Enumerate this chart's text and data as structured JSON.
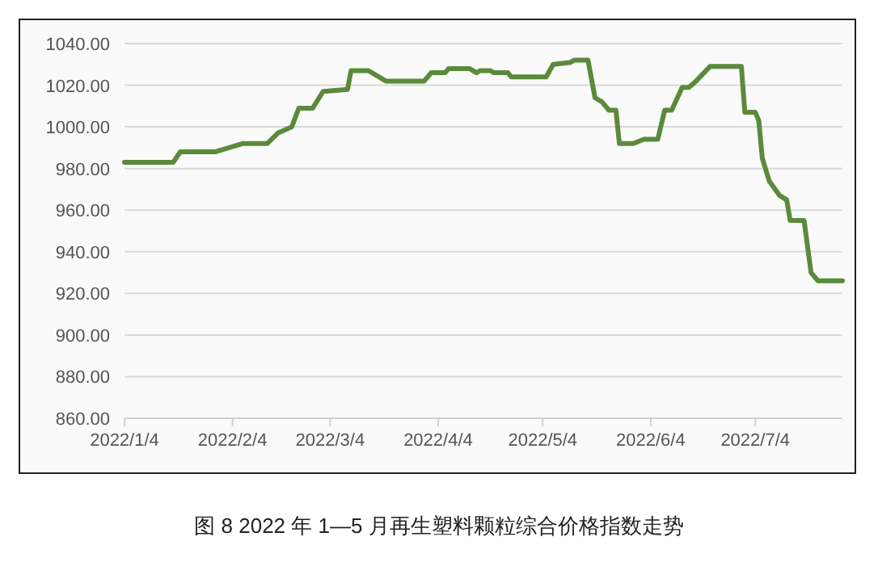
{
  "chart_data": {
    "type": "line",
    "x": [
      "2022-01-04",
      "2022-01-18",
      "2022-01-20",
      "2022-01-30",
      "2022-02-07",
      "2022-02-14",
      "2022-02-17",
      "2022-02-21",
      "2022-02-23",
      "2022-02-27",
      "2022-03-02",
      "2022-03-09",
      "2022-03-10",
      "2022-03-15",
      "2022-03-20",
      "2022-03-31",
      "2022-04-02",
      "2022-04-06",
      "2022-04-07",
      "2022-04-13",
      "2022-04-15",
      "2022-04-16",
      "2022-04-19",
      "2022-04-20",
      "2022-04-24",
      "2022-04-25",
      "2022-05-05",
      "2022-05-07",
      "2022-05-12",
      "2022-05-13",
      "2022-05-17",
      "2022-05-19",
      "2022-05-21",
      "2022-05-23",
      "2022-05-25",
      "2022-05-26",
      "2022-05-30",
      "2022-06-02",
      "2022-06-06",
      "2022-06-08",
      "2022-06-10",
      "2022-06-13",
      "2022-06-15",
      "2022-06-17",
      "2022-06-21",
      "2022-06-30",
      "2022-07-01",
      "2022-07-04",
      "2022-07-05",
      "2022-07-06",
      "2022-07-08",
      "2022-07-11",
      "2022-07-13",
      "2022-07-14",
      "2022-07-18",
      "2022-07-20",
      "2022-07-22",
      "2022-07-29"
    ],
    "series": [
      {
        "color": "#5b8a3a",
        "values": [
          983,
          983,
          988,
          988,
          992,
          992,
          997,
          1000,
          1009,
          1009,
          1017,
          1018,
          1027,
          1027,
          1022,
          1022,
          1026,
          1026,
          1028,
          1028,
          1026,
          1027,
          1027,
          1026,
          1026,
          1024,
          1024,
          1030,
          1031,
          1032,
          1032,
          1014,
          1012,
          1008,
          1008,
          992,
          992,
          994,
          994,
          1008,
          1008,
          1019,
          1019,
          1022,
          1029,
          1029,
          1007,
          1007,
          1003,
          985,
          974,
          967,
          965,
          955,
          955,
          930,
          926,
          926
        ]
      }
    ],
    "xlim": [
      "2022-01-04",
      "2022-07-29"
    ],
    "xticks": [
      {
        "value": "2022-01-04",
        "label": "2022/1/4"
      },
      {
        "value": "2022-02-04",
        "label": "2022/2/4"
      },
      {
        "value": "2022-03-04",
        "label": "2022/3/4"
      },
      {
        "value": "2022-04-04",
        "label": "2022/4/4"
      },
      {
        "value": "2022-05-04",
        "label": "2022/5/4"
      },
      {
        "value": "2022-06-04",
        "label": "2022/6/4"
      },
      {
        "value": "2022-07-04",
        "label": "2022/7/4"
      }
    ],
    "ylim": [
      860,
      1040
    ],
    "yticks": [
      {
        "value": 860,
        "label": "860.00"
      },
      {
        "value": 880,
        "label": "880.00"
      },
      {
        "value": 900,
        "label": "900.00"
      },
      {
        "value": 920,
        "label": "920.00"
      },
      {
        "value": 940,
        "label": "940.00"
      },
      {
        "value": 960,
        "label": "960.00"
      },
      {
        "value": 980,
        "label": "980.00"
      },
      {
        "value": 1000,
        "label": "1000.00"
      },
      {
        "value": 1020,
        "label": "1020.00"
      },
      {
        "value": 1040,
        "label": "1040.00"
      }
    ],
    "grid": "y",
    "marker": "none",
    "line_style": "solid",
    "annotations": [
      "图 8 2022 年 1—5 月再生塑料颗粒综合价格指数走势"
    ]
  }
}
